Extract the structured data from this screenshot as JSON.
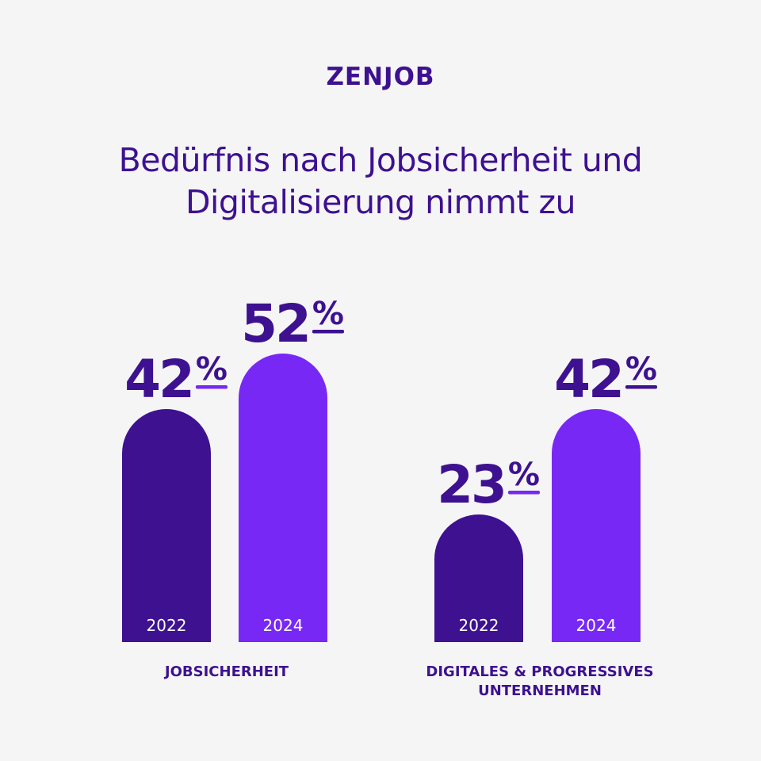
{
  "brand": "ZENJOB",
  "title_lines": [
    "Bedürfnis nach Jobsicherheit und",
    "Digitalisierung nimmt zu"
  ],
  "colors": {
    "background": "#f5f5f5",
    "text": "#3d1190",
    "bar_2022": "#3d1190",
    "bar_2024": "#7828f4",
    "pct_2022": "#7828f4",
    "pct_2024": "#3d1190",
    "year_label": "#ffffff"
  },
  "chart_data": {
    "type": "bar",
    "title": "Bedürfnis nach Jobsicherheit und Digitalisierung nimmt zu",
    "unit": "%",
    "ylim": [
      0,
      100
    ],
    "grid": false,
    "legend": "none",
    "groups": [
      {
        "label_lines": [
          "JOBSICHERHEIT"
        ],
        "bars": [
          {
            "year": "2022",
            "value": 42
          },
          {
            "year": "2024",
            "value": 52
          }
        ]
      },
      {
        "label_lines": [
          "DIGITALES & PROGRESSIVES",
          "UNTERNEHMEN"
        ],
        "bars": [
          {
            "year": "2022",
            "value": 23
          },
          {
            "year": "2024",
            "value": 42
          }
        ]
      }
    ]
  }
}
